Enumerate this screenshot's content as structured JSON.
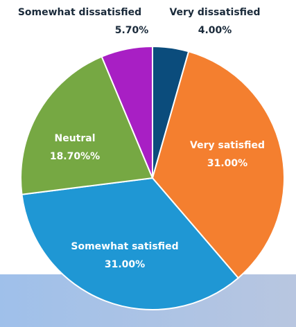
{
  "chart_data": {
    "type": "pie",
    "categories": [
      "Very dissatisfied",
      "Very satisfied",
      "Somewhat satisfied",
      "Neutral",
      "Somewhat dissatisfied"
    ],
    "values": [
      4,
      31,
      31,
      18.7,
      5.7
    ],
    "value_labels": [
      "4.00%",
      "31.00%",
      "31.00%",
      "18.70%%",
      "5.70%"
    ],
    "colors": [
      "#0b4c7c",
      "#f47f2f",
      "#1f97d4",
      "#76a843",
      "#a81fc4"
    ]
  }
}
